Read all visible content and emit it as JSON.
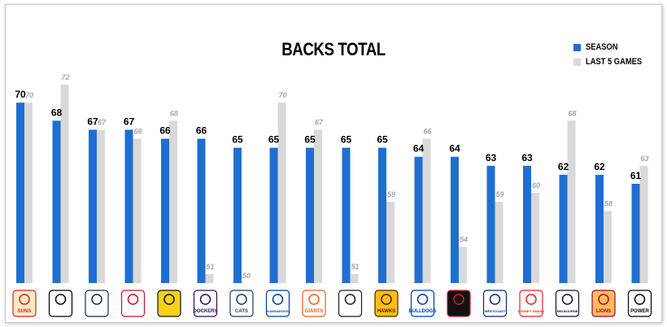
{
  "chart_data": {
    "type": "bar",
    "title": "BACKS TOTAL",
    "legend_position": "top-right",
    "y_baseline": 50,
    "y_top": 72,
    "categories": [
      "SUNS",
      "COLLINGWOOD",
      "ADELAIDE",
      "ST KILDA",
      "RICHMOND",
      "DOCKERS",
      "CATS",
      "KANGAROOS",
      "GIANTS",
      "CARLTON",
      "HAWKS",
      "BULLDOGS",
      "ESSENDON",
      "WEST COAST",
      "SYDNEY SWANS",
      "MELBOURNE",
      "LIONS",
      "POWER"
    ],
    "series": [
      {
        "name": "SEASON",
        "color": "#1f6fd1",
        "values": [
          70,
          68,
          67,
          67,
          66,
          66,
          65,
          65,
          65,
          65,
          65,
          64,
          64,
          63,
          63,
          62,
          62,
          61
        ]
      },
      {
        "name": "LAST 5 GAMES",
        "color": "#d9d9d9",
        "values": [
          70,
          72,
          67,
          66,
          68,
          51,
          50,
          70,
          67,
          51,
          59,
          66,
          54,
          59,
          60,
          68,
          58,
          63
        ]
      }
    ],
    "season_labels": [
      "70",
      "68",
      "67",
      "67",
      "66",
      "66",
      "65",
      "65",
      "65",
      "65",
      "65",
      "64",
      "64",
      "63",
      "63",
      "62",
      "62",
      "61"
    ],
    "last5_labels": [
      "70",
      "72",
      "67",
      "66",
      "68",
      "51",
      "50",
      "70",
      "67",
      "51",
      "59",
      "66",
      "54",
      "59",
      "60",
      "68",
      "58",
      "63"
    ]
  },
  "logos": [
    {
      "text": "SUNS",
      "color": "#d4232a",
      "bg": "#fde9c4",
      "icon": "suns-logo"
    },
    {
      "text": "",
      "color": "#000000",
      "bg": "#ffffff",
      "icon": "magpie-logo"
    },
    {
      "text": "",
      "color": "#0c2a5c",
      "bg": "#ffffff",
      "icon": "crows-logo"
    },
    {
      "text": "",
      "color": "#c8102e",
      "bg": "#ffffff",
      "icon": "saints-logo"
    },
    {
      "text": "",
      "color": "#111111",
      "bg": "#f7d117",
      "icon": "tigers-logo"
    },
    {
      "text": "DOCKERS",
      "color": "#2a0d54",
      "bg": "#ffffff",
      "icon": "dockers-logo"
    },
    {
      "text": "CATS",
      "color": "#1c3c63",
      "bg": "#ffffff",
      "icon": "cats-logo"
    },
    {
      "text": "KANGAROOS",
      "color": "#013b9f",
      "bg": "#ffffff",
      "icon": "kangaroos-logo"
    },
    {
      "text": "GIANTS",
      "color": "#f15c22",
      "bg": "#ffffff",
      "icon": "giants-logo"
    },
    {
      "text": "",
      "color": "#0e1e2d",
      "bg": "#ffffff",
      "icon": "carlton-logo"
    },
    {
      "text": "HAWKS",
      "color": "#4d2004",
      "bg": "#fbbf15",
      "icon": "hawks-logo"
    },
    {
      "text": "BULLDOGS",
      "color": "#0039a6",
      "bg": "#ffffff",
      "icon": "bulldogs-logo"
    },
    {
      "text": "",
      "color": "#cc2031",
      "bg": "#111111",
      "icon": "bombers-logo"
    },
    {
      "text": "WESTCOAST",
      "color": "#002b79",
      "bg": "#ffffff",
      "icon": "eagles-logo"
    },
    {
      "text": "SYDNEY SWANS",
      "color": "#e1251b",
      "bg": "#ffffff",
      "icon": "swans-logo"
    },
    {
      "text": "MELBOURNE",
      "color": "#0f1131",
      "bg": "#ffffff",
      "icon": "demons-logo"
    },
    {
      "text": "LIONS",
      "color": "#a30046",
      "bg": "#fdbe57",
      "icon": "lions-logo"
    },
    {
      "text": "POWER",
      "color": "#000000",
      "bg": "#ffffff",
      "icon": "power-logo"
    }
  ]
}
